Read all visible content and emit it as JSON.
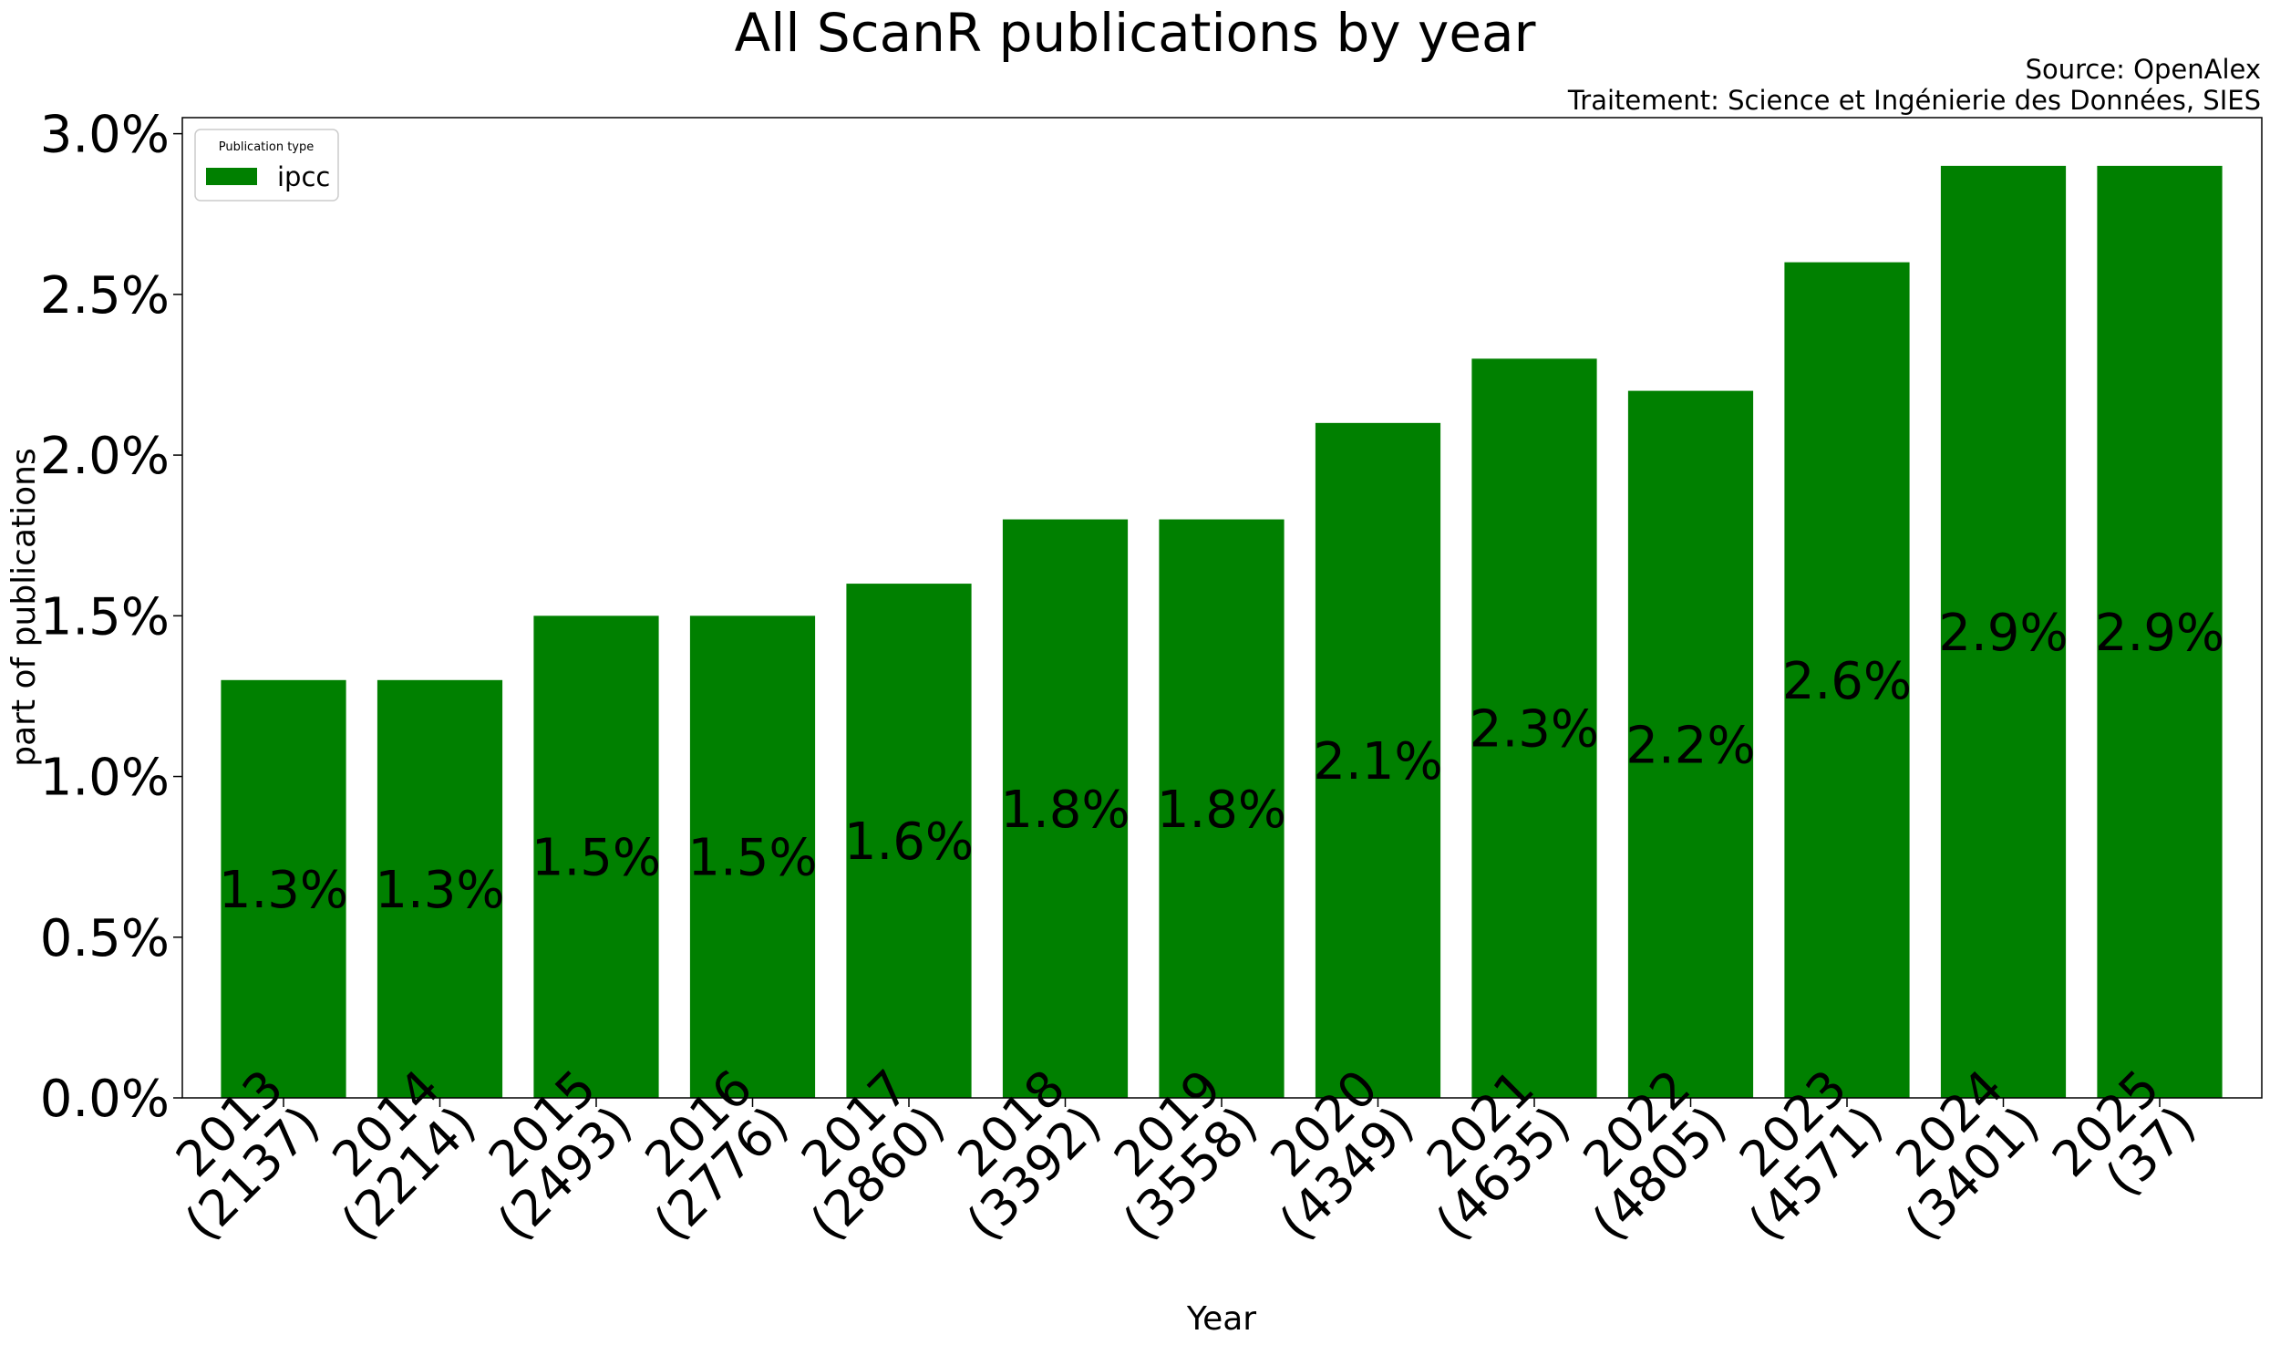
{
  "header": {
    "title": "All ScanR publications by year",
    "source": "Source: OpenAlex",
    "processing": "Traitement: Science et Ingénierie des Données, SIES"
  },
  "colors": {
    "bar": "#008000",
    "text": "#000000",
    "frame": "#000000"
  },
  "chart_data": {
    "type": "bar",
    "title": "All ScanR publications by year",
    "xlabel": "Year",
    "ylabel": "part of publications",
    "ylim": [
      0,
      3.05
    ],
    "yticks": [
      "0.0%",
      "0.5%",
      "1.0%",
      "1.5%",
      "2.0%",
      "2.5%",
      "3.0%"
    ],
    "ytick_values": [
      0,
      0.5,
      1.0,
      1.5,
      2.0,
      2.5,
      3.0
    ],
    "categories": [
      "2013\n(2137)",
      "2014\n(2214)",
      "2015\n(2493)",
      "2016\n(2776)",
      "2017\n(2860)",
      "2018\n(3392)",
      "2019\n(3558)",
      "2020\n(4349)",
      "2021\n(4635)",
      "2022\n(4805)",
      "2023\n(4571)",
      "2024\n(3401)",
      "2025\n(37)"
    ],
    "legend": {
      "title": "Publication type",
      "placement": "top-left"
    },
    "series": [
      {
        "name": "ipcc",
        "values": [
          1.3,
          1.3,
          1.5,
          1.5,
          1.6,
          1.8,
          1.8,
          2.1,
          2.3,
          2.2,
          2.6,
          2.9,
          2.9
        ],
        "labels": [
          "1.3%",
          "1.3%",
          "1.5%",
          "1.5%",
          "1.6%",
          "1.8%",
          "1.8%",
          "2.1%",
          "2.3%",
          "2.2%",
          "2.6%",
          "2.9%",
          "2.9%"
        ]
      }
    ],
    "grid": false
  }
}
